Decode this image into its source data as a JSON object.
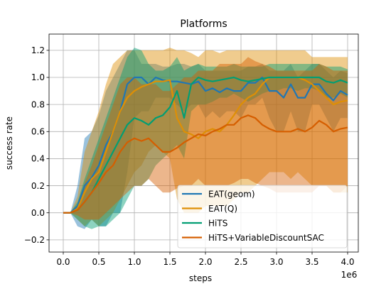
{
  "chart_data": {
    "type": "line",
    "title": "Platforms",
    "xlabel": "steps",
    "ylabel": "success rate",
    "x_multiplier_label": "1e6",
    "xlim": [
      -0.2,
      4.15
    ],
    "ylim": [
      -0.29,
      1.32
    ],
    "xticks": [
      0.0,
      0.5,
      1.0,
      1.5,
      2.0,
      2.5,
      3.0,
      3.5,
      4.0
    ],
    "xtick_labels": [
      "0.0",
      "0.5",
      "1.0",
      "1.5",
      "2.0",
      "2.5",
      "3.0",
      "3.5",
      "4.0"
    ],
    "yticks": [
      -0.2,
      0.0,
      0.2,
      0.4,
      0.6,
      0.8,
      1.0,
      1.2
    ],
    "ytick_labels": [
      "−0.2",
      "0.0",
      "0.2",
      "0.4",
      "0.6",
      "0.8",
      "1.0",
      "1.2"
    ],
    "grid": true,
    "legend_position": "bottom-right",
    "series": [
      {
        "name": "EAT(geom)",
        "color": "#1f77b4",
        "x": [
          0.0,
          0.1,
          0.2,
          0.3,
          0.4,
          0.5,
          0.6,
          0.7,
          0.8,
          0.9,
          1.0,
          1.1,
          1.2,
          1.3,
          1.4,
          1.5,
          1.6,
          1.7,
          1.8,
          1.9,
          2.0,
          2.1,
          2.2,
          2.3,
          2.4,
          2.5,
          2.6,
          2.7,
          2.8,
          2.9,
          3.0,
          3.1,
          3.2,
          3.3,
          3.4,
          3.5,
          3.6,
          3.7,
          3.8,
          3.9,
          4.0
        ],
        "y": [
          0.0,
          0.0,
          0.05,
          0.2,
          0.26,
          0.35,
          0.5,
          0.6,
          0.75,
          0.95,
          1.0,
          1.0,
          0.95,
          1.0,
          0.98,
          0.97,
          0.97,
          0.96,
          0.95,
          0.97,
          0.9,
          0.92,
          0.89,
          0.92,
          0.9,
          0.9,
          0.96,
          0.96,
          1.0,
          0.9,
          0.9,
          0.85,
          0.95,
          0.85,
          0.85,
          0.95,
          0.95,
          0.88,
          0.83,
          0.9,
          0.87
        ],
        "lower": [
          0.0,
          0.0,
          -0.1,
          -0.12,
          -0.05,
          -0.1,
          -0.1,
          0.0,
          0.0,
          0.3,
          0.7,
          0.75,
          0.75,
          0.85,
          0.85,
          0.85,
          0.8,
          0.75,
          0.8,
          0.8,
          0.7,
          0.75,
          0.7,
          0.75,
          0.75,
          0.7,
          0.8,
          0.8,
          0.85,
          0.7,
          0.6,
          0.6,
          0.75,
          0.6,
          0.6,
          0.8,
          0.8,
          0.7,
          0.6,
          0.7,
          0.7
        ],
        "upper": [
          0.0,
          0.0,
          0.2,
          0.55,
          0.6,
          0.72,
          0.9,
          1.0,
          1.1,
          1.2,
          1.2,
          1.1,
          1.1,
          1.1,
          1.08,
          1.08,
          1.1,
          1.1,
          1.08,
          1.1,
          1.05,
          1.05,
          1.05,
          1.05,
          1.05,
          1.05,
          1.08,
          1.08,
          1.1,
          1.05,
          1.05,
          1.05,
          1.1,
          1.0,
          1.05,
          1.1,
          1.1,
          1.05,
          1.0,
          1.05,
          1.03
        ]
      },
      {
        "name": "EAT(Q)",
        "color": "#de8f05",
        "x": [
          0.0,
          0.1,
          0.2,
          0.3,
          0.4,
          0.5,
          0.6,
          0.7,
          0.8,
          0.9,
          1.0,
          1.1,
          1.2,
          1.3,
          1.4,
          1.5,
          1.6,
          1.7,
          1.8,
          1.9,
          2.0,
          2.1,
          2.2,
          2.3,
          2.4,
          2.5,
          2.6,
          2.7,
          2.8,
          2.9,
          3.0,
          3.1,
          3.2,
          3.3,
          3.4,
          3.5,
          3.6,
          3.7,
          3.8,
          3.9,
          4.0
        ],
        "y": [
          0.0,
          0.0,
          0.03,
          0.15,
          0.25,
          0.3,
          0.45,
          0.6,
          0.75,
          0.85,
          0.9,
          0.93,
          0.95,
          0.97,
          0.97,
          0.98,
          0.7,
          0.6,
          0.58,
          0.55,
          0.6,
          0.62,
          0.6,
          0.65,
          0.72,
          0.8,
          0.85,
          0.88,
          0.95,
          1.0,
          1.0,
          1.0,
          1.0,
          1.0,
          0.98,
          0.95,
          0.9,
          0.85,
          0.8,
          0.82,
          0.83
        ],
        "lower": [
          0.0,
          0.0,
          -0.05,
          -0.1,
          -0.05,
          -0.1,
          -0.05,
          0.0,
          0.1,
          0.2,
          0.3,
          0.35,
          0.45,
          0.5,
          0.45,
          0.4,
          0.1,
          0.0,
          0.0,
          0.0,
          0.05,
          0.05,
          0.05,
          0.05,
          0.1,
          0.15,
          0.15,
          0.2,
          0.25,
          0.3,
          0.3,
          0.3,
          0.25,
          0.3,
          0.25,
          0.2,
          0.2,
          0.2,
          0.15,
          0.15,
          0.15
        ],
        "upper": [
          0.0,
          0.0,
          0.12,
          0.45,
          0.6,
          0.75,
          0.95,
          1.1,
          1.15,
          1.2,
          1.2,
          1.2,
          1.2,
          1.2,
          1.2,
          1.22,
          1.2,
          1.2,
          1.18,
          1.15,
          1.2,
          1.2,
          1.18,
          1.2,
          1.2,
          1.2,
          1.2,
          1.2,
          1.2,
          1.2,
          1.2,
          1.2,
          1.2,
          1.2,
          1.2,
          1.15,
          1.15,
          1.15,
          1.15,
          1.15,
          1.15
        ]
      },
      {
        "name": "HiTS",
        "color": "#029e73",
        "x": [
          0.0,
          0.1,
          0.2,
          0.3,
          0.4,
          0.5,
          0.6,
          0.7,
          0.8,
          0.9,
          1.0,
          1.1,
          1.2,
          1.3,
          1.4,
          1.5,
          1.6,
          1.7,
          1.8,
          1.9,
          2.0,
          2.1,
          2.2,
          2.3,
          2.4,
          2.5,
          2.6,
          2.7,
          2.8,
          2.9,
          3.0,
          3.1,
          3.2,
          3.3,
          3.4,
          3.5,
          3.6,
          3.7,
          3.8,
          3.9,
          4.0
        ],
        "y": [
          0.0,
          0.0,
          0.02,
          0.08,
          0.15,
          0.25,
          0.35,
          0.45,
          0.55,
          0.65,
          0.7,
          0.68,
          0.65,
          0.7,
          0.72,
          0.78,
          0.9,
          0.7,
          0.95,
          1.0,
          0.98,
          0.97,
          0.98,
          0.99,
          1.0,
          0.98,
          0.97,
          0.98,
          0.99,
          1.0,
          1.0,
          1.0,
          1.0,
          1.0,
          1.0,
          1.0,
          1.0,
          0.97,
          0.96,
          0.98,
          0.96
        ],
        "lower": [
          0.0,
          0.0,
          -0.05,
          -0.1,
          -0.12,
          -0.1,
          -0.1,
          -0.05,
          0.0,
          0.1,
          0.2,
          0.2,
          0.25,
          0.35,
          0.4,
          0.45,
          0.5,
          0.4,
          0.75,
          0.8,
          0.8,
          0.82,
          0.85,
          0.85,
          0.88,
          0.85,
          0.82,
          0.85,
          0.88,
          0.9,
          0.9,
          0.92,
          0.92,
          0.9,
          0.92,
          0.92,
          0.9,
          0.85,
          0.85,
          0.88,
          0.85
        ],
        "upper": [
          0.0,
          0.0,
          0.08,
          0.25,
          0.4,
          0.55,
          0.7,
          0.85,
          1.0,
          1.15,
          1.22,
          1.2,
          1.1,
          1.05,
          1.05,
          1.08,
          1.15,
          1.05,
          1.08,
          1.1,
          1.08,
          1.08,
          1.08,
          1.08,
          1.1,
          1.08,
          1.08,
          1.08,
          1.08,
          1.1,
          1.1,
          1.1,
          1.1,
          1.1,
          1.1,
          1.1,
          1.1,
          1.08,
          1.08,
          1.08,
          1.06
        ]
      },
      {
        "name": "HiTS+VariableDiscountSAC",
        "color": "#d55e00",
        "x": [
          0.0,
          0.1,
          0.2,
          0.3,
          0.4,
          0.5,
          0.6,
          0.7,
          0.8,
          0.9,
          1.0,
          1.1,
          1.2,
          1.3,
          1.4,
          1.5,
          1.6,
          1.7,
          1.8,
          1.9,
          2.0,
          2.1,
          2.2,
          2.3,
          2.4,
          2.5,
          2.6,
          2.7,
          2.8,
          2.9,
          3.0,
          3.1,
          3.2,
          3.3,
          3.4,
          3.5,
          3.6,
          3.7,
          3.8,
          3.9,
          4.0
        ],
        "y": [
          0.0,
          0.0,
          0.02,
          0.08,
          0.15,
          0.22,
          0.3,
          0.35,
          0.45,
          0.52,
          0.55,
          0.53,
          0.55,
          0.5,
          0.45,
          0.45,
          0.48,
          0.52,
          0.55,
          0.58,
          0.57,
          0.6,
          0.62,
          0.65,
          0.65,
          0.7,
          0.72,
          0.7,
          0.65,
          0.62,
          0.6,
          0.6,
          0.6,
          0.62,
          0.6,
          0.63,
          0.68,
          0.65,
          0.6,
          0.62,
          0.63
        ],
        "lower": [
          0.0,
          0.0,
          -0.02,
          -0.05,
          -0.05,
          -0.05,
          0.0,
          0.05,
          0.1,
          0.15,
          0.2,
          0.2,
          0.25,
          0.2,
          0.15,
          0.15,
          0.18,
          0.2,
          0.2,
          0.25,
          0.2,
          0.2,
          0.2,
          0.2,
          0.22,
          0.25,
          0.25,
          0.22,
          0.2,
          0.18,
          0.15,
          0.15,
          0.15,
          0.15,
          0.15,
          0.15,
          0.2,
          0.2,
          0.15,
          0.15,
          0.2
        ],
        "upper": [
          0.0,
          0.0,
          0.05,
          0.22,
          0.35,
          0.5,
          0.65,
          0.8,
          0.95,
          1.0,
          1.0,
          0.95,
          0.95,
          0.95,
          0.9,
          0.9,
          0.95,
          1.0,
          1.0,
          1.05,
          1.05,
          1.05,
          1.1,
          1.1,
          1.1,
          1.1,
          1.15,
          1.12,
          1.1,
          1.08,
          1.05,
          1.05,
          1.05,
          1.05,
          1.05,
          1.05,
          1.1,
          1.08,
          1.05,
          1.05,
          1.05
        ]
      }
    ]
  }
}
